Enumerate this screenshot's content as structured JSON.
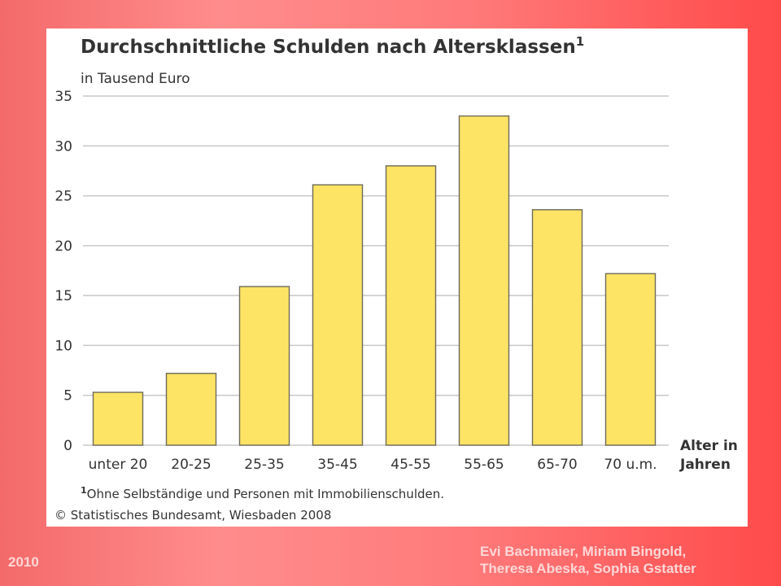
{
  "chart_data": {
    "type": "bar",
    "title": "Durchschnittliche Schulden nach Altersklassen",
    "title_footnote_mark": "1",
    "subtitle": "in Tausend Euro",
    "xlabel_lines": [
      "Alter in",
      "Jahren"
    ],
    "categories": [
      "unter 20",
      "20-25",
      "25-35",
      "35-45",
      "45-55",
      "55-65",
      "65-70",
      "70 u.m."
    ],
    "values": [
      5.3,
      7.2,
      15.9,
      26.1,
      28.0,
      33.0,
      23.6,
      17.2
    ],
    "ylim": [
      0,
      35
    ],
    "yticks": [
      0,
      5,
      10,
      15,
      20,
      25,
      30,
      35
    ],
    "grid": true,
    "bar_color": "#fde465",
    "footnote_mark": "1",
    "footnote": "Ohne Selbständige und Personen mit Immobilienschulden.",
    "source": "© Statistisches Bundesamt, Wiesbaden 2008"
  },
  "slide": {
    "year": "2010",
    "authors_line1": "Evi Bachmaier, Miriam Bingold,",
    "authors_line2": "Theresa Abeska, Sophia Gstatter"
  }
}
